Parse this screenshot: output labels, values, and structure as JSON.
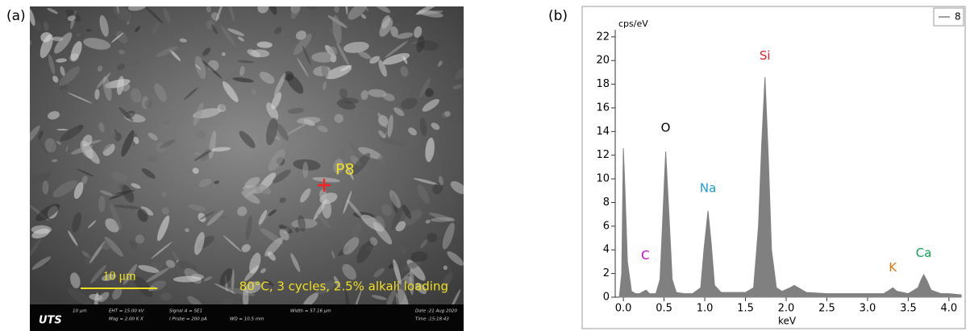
{
  "panel_a": {
    "label": "(a)",
    "point": "P8",
    "scale_bar": "10 μm",
    "caption": "80°C, 3 cycles, 2.5% alkali loading",
    "footer": {
      "brand": "UTS",
      "items": [
        "10 μm",
        "EHT = 15.00 kV",
        "Mag = 2.00 K X",
        "Signal A = SE1",
        "I Probe = 200 pA",
        "Date :21 Aug 2020",
        "WD = 10.5 mm",
        "Width = 57.16 μm",
        "Time :15:18:43"
      ]
    }
  },
  "chart_data": {
    "type": "area",
    "panel_label": "(b)",
    "y_label": "cps/eV",
    "x_label": "keV",
    "x": [
      -0.05,
      -0.02,
      0.0,
      0.02,
      0.05,
      0.1,
      0.15,
      0.2,
      0.25,
      0.28,
      0.32,
      0.4,
      0.45,
      0.48,
      0.52,
      0.56,
      0.6,
      0.65,
      0.75,
      0.85,
      0.95,
      0.99,
      1.04,
      1.08,
      1.12,
      1.2,
      1.35,
      1.5,
      1.6,
      1.66,
      1.7,
      1.74,
      1.78,
      1.82,
      1.88,
      1.95,
      2.05,
      2.1,
      2.15,
      2.25,
      2.5,
      2.75,
      3.0,
      3.2,
      3.27,
      3.31,
      3.36,
      3.5,
      3.62,
      3.66,
      3.69,
      3.73,
      3.78,
      3.9,
      4.0,
      4.15
    ],
    "series": [
      {
        "name": "8",
        "color": "#808080",
        "values": [
          0,
          2,
          12.6,
          9,
          3,
          0.5,
          0.3,
          0.3,
          0.5,
          0.6,
          0.3,
          0.3,
          1.5,
          6,
          12.3,
          7,
          1.5,
          0.4,
          0.3,
          0.3,
          0.8,
          4,
          7.3,
          4.5,
          1,
          0.4,
          0.4,
          0.4,
          0.8,
          6,
          13,
          18.6,
          12,
          4,
          0.8,
          0.5,
          0.8,
          1.0,
          0.8,
          0.4,
          0.3,
          0.3,
          0.3,
          0.3,
          0.6,
          0.8,
          0.5,
          0.3,
          0.8,
          1.5,
          1.9,
          1.4,
          0.6,
          0.3,
          0.3,
          0.2
        ]
      }
    ],
    "xlim": [
      -0.1,
      4.12
    ],
    "ylim": [
      0,
      22.6
    ],
    "xticks": [
      {
        "value": 0,
        "label": "0.0"
      },
      0.5,
      {
        "value": 1,
        "label": "1.0"
      },
      1.5,
      {
        "value": 2,
        "label": "2.0"
      },
      2.5,
      {
        "value": 3,
        "label": "3.0"
      },
      3.5,
      {
        "value": 4,
        "label": "4.0"
      }
    ],
    "yticks": [
      0,
      2,
      4,
      6,
      8,
      10,
      12,
      14,
      16,
      18,
      20,
      22
    ],
    "annotations": [
      {
        "text": "C",
        "x": 0.27,
        "y": 3.5,
        "color": "#cc00cc"
      },
      {
        "text": "O",
        "x": 0.52,
        "y": 14.3,
        "color": "#000000"
      },
      {
        "text": "Na",
        "x": 1.04,
        "y": 9.2,
        "color": "#1a9bd7"
      },
      {
        "text": "Si",
        "x": 1.74,
        "y": 20.4,
        "color": "#e0202a"
      },
      {
        "text": "K",
        "x": 3.31,
        "y": 2.5,
        "color": "#e07a10"
      },
      {
        "text": "Ca",
        "x": 3.69,
        "y": 3.7,
        "color": "#10a050"
      }
    ],
    "legend": "top-right"
  }
}
